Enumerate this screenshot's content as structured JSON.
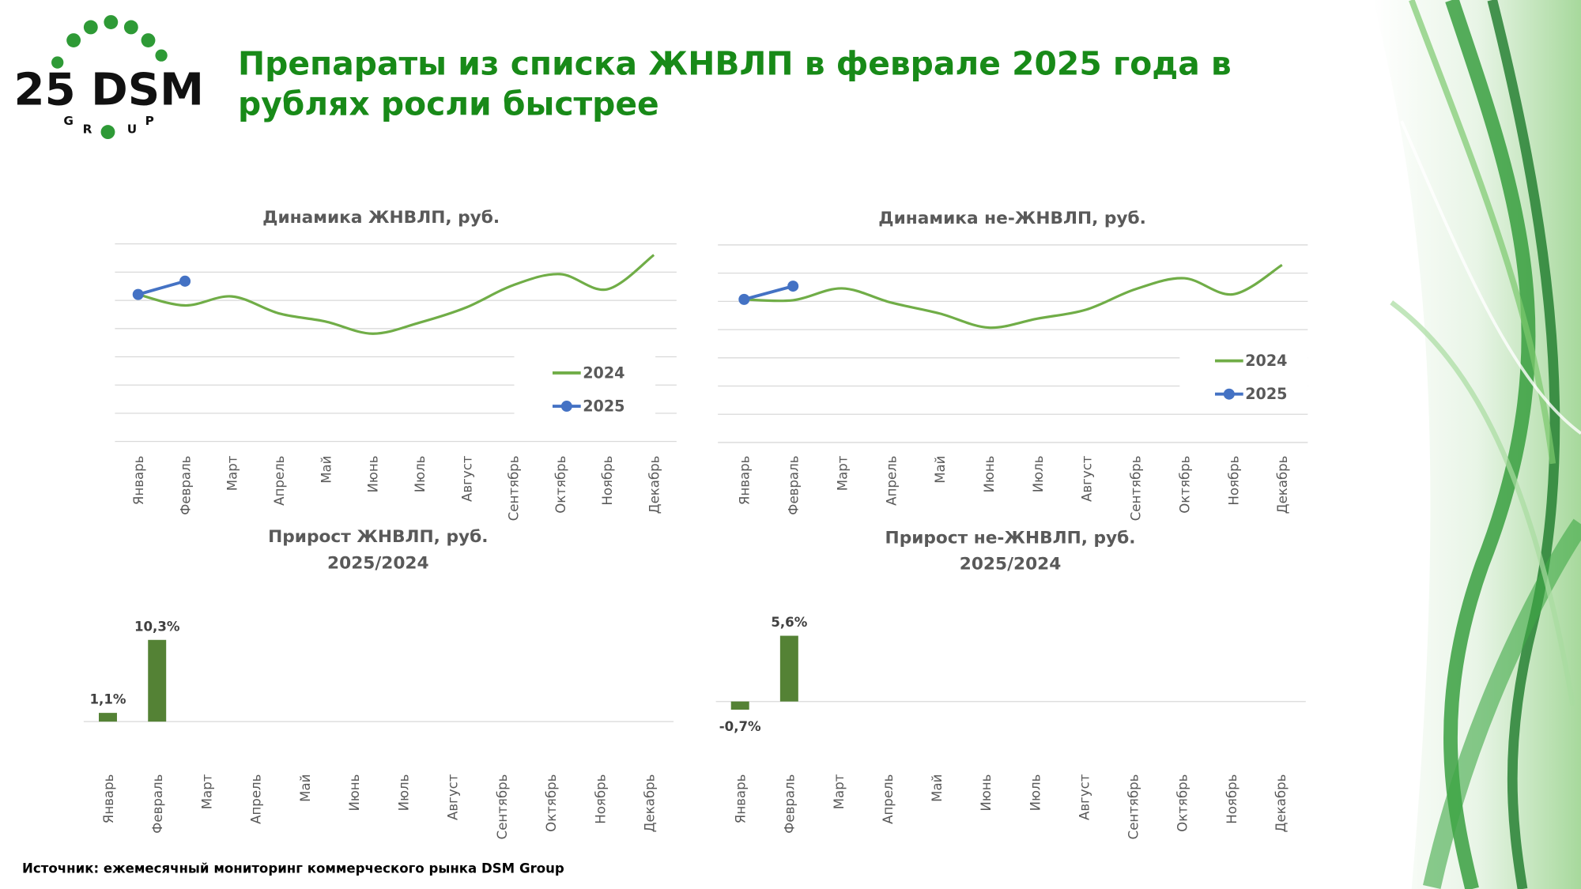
{
  "title": [
    "Препараты из списка ЖНВЛП в феврале 2025 года в",
    "рублях росли быстрее"
  ],
  "logo": {
    "text": "25 DSM",
    "letters": [
      "G",
      "R",
      "U",
      "P"
    ]
  },
  "source": "Источник: ежемесячный мониторинг коммерческого рынка DSM Group",
  "chart_data": [
    {
      "type": "line",
      "title": [
        "Динамика ЖНВЛП, руб."
      ],
      "categories": [
        "Январь",
        "Февраль",
        "Март",
        "Апрель",
        "Май",
        "Июнь",
        "Июль",
        "Август",
        "Сентябрь",
        "Октябрь",
        "Ноябрь",
        "Декабрь"
      ],
      "series": [
        {
          "name": "2024",
          "color": "#70ad47",
          "values": [
            5.21,
            4.82,
            5.14,
            4.54,
            4.25,
            3.82,
            4.21,
            4.75,
            5.54,
            5.93,
            5.39,
            6.61
          ]
        },
        {
          "name": "2025",
          "color": "#4472c4",
          "values": [
            5.21,
            5.68,
            null,
            null,
            null,
            null,
            null,
            null,
            null,
            null,
            null,
            null
          ]
        }
      ],
      "ylim": [
        0,
        7
      ],
      "yticks": [
        0,
        1,
        2,
        3,
        4,
        5,
        6,
        7
      ],
      "grid": true,
      "legend": "right"
    },
    {
      "type": "line",
      "title": [
        "Динамика не-ЖНВЛП, руб."
      ],
      "categories": [
        "Январь",
        "Февраль",
        "Март",
        "Апрель",
        "Май",
        "Июнь",
        "Июль",
        "Август",
        "Сентябрь",
        "Октябрь",
        "Ноябрь",
        "Декабрь"
      ],
      "series": [
        {
          "name": "2024",
          "color": "#70ad47",
          "values": [
            5.07,
            5.04,
            5.46,
            4.96,
            4.57,
            4.07,
            4.39,
            4.71,
            5.43,
            5.82,
            5.25,
            6.29
          ]
        },
        {
          "name": "2025",
          "color": "#4472c4",
          "values": [
            5.07,
            5.54,
            null,
            null,
            null,
            null,
            null,
            null,
            null,
            null,
            null,
            null
          ]
        }
      ],
      "ylim": [
        0,
        7
      ],
      "yticks": [
        0,
        1,
        2,
        3,
        4,
        5,
        6,
        7
      ],
      "grid": true,
      "legend": "right"
    },
    {
      "type": "bar",
      "title": [
        "Прирост ЖНВЛП, руб.",
        "2025/2024"
      ],
      "categories": [
        "Январь",
        "Февраль",
        "Март",
        "Апрель",
        "Май",
        "Июнь",
        "Июль",
        "Август",
        "Сентябрь",
        "Октябрь",
        "Ноябрь",
        "Декабрь"
      ],
      "values": [
        1.1,
        10.3,
        null,
        null,
        null,
        null,
        null,
        null,
        null,
        null,
        null,
        null
      ],
      "value_labels": [
        "1,1%",
        "10,3%",
        null,
        null,
        null,
        null,
        null,
        null,
        null,
        null,
        null,
        null
      ],
      "color": "#548235",
      "ylim": [
        -5.6,
        16
      ]
    },
    {
      "type": "bar",
      "title": [
        "Прирост не-ЖНВЛП, руб.",
        "2025/2024"
      ],
      "categories": [
        "Январь",
        "Февраль",
        "Март",
        "Апрель",
        "Май",
        "Июнь",
        "Июль",
        "Август",
        "Сентябрь",
        "Октябрь",
        "Ноябрь",
        "Декабрь"
      ],
      "values": [
        -0.7,
        5.6,
        null,
        null,
        null,
        null,
        null,
        null,
        null,
        null,
        null,
        null
      ],
      "value_labels": [
        "-0,7%",
        "5,6%",
        null,
        null,
        null,
        null,
        null,
        null,
        null,
        null,
        null,
        null
      ],
      "color": "#548235",
      "ylim": [
        -5.5,
        9.1
      ]
    }
  ]
}
